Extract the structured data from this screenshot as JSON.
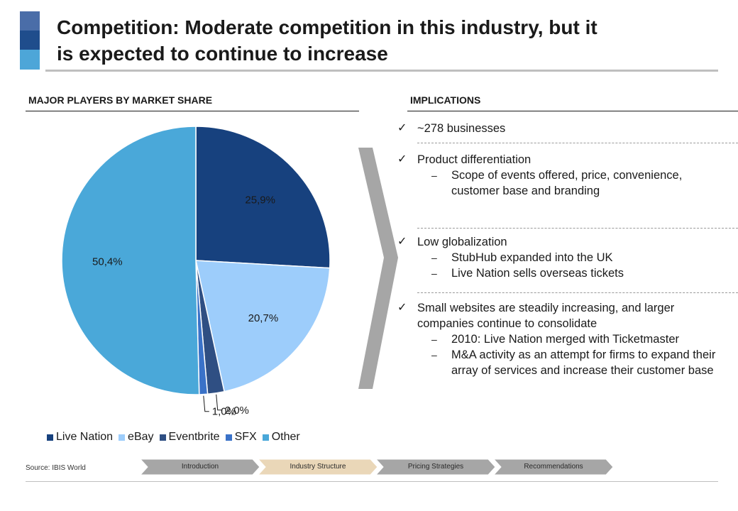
{
  "slide": {
    "title_line1": "Competition: Moderate competition in this industry, but it",
    "title_line2": "is expected to continue to increase",
    "left_heading": "MAJOR PLAYERS BY MARKET SHARE",
    "right_heading": "IMPLICATIONS",
    "source": "Source: IBIS World"
  },
  "chart_data": {
    "type": "pie",
    "title": "",
    "categories": [
      "Live Nation",
      "eBay",
      "Eventbrite",
      "SFX",
      "Other"
    ],
    "values": [
      25.9,
      20.7,
      2.0,
      1.0,
      50.4
    ],
    "labels": [
      "25,9%",
      "20,7%",
      "2,0%",
      "1,0%",
      "50,4%"
    ],
    "colors": [
      "#17417e",
      "#9dcdfb",
      "#2f4f83",
      "#3a72c8",
      "#4aa8d9"
    ],
    "legend_position": "bottom"
  },
  "implications": [
    {
      "text": "~278 businesses",
      "subs": []
    },
    {
      "text": "Product differentiation",
      "subs": [
        "Scope of events offered, price, convenience, customer base and branding"
      ]
    },
    {
      "text": "Low globalization",
      "subs": [
        "StubHub expanded into the UK",
        "Live Nation sells overseas tickets"
      ]
    },
    {
      "text": "Small websites are steadily increasing, and larger companies continue to consolidate",
      "subs": [
        "2010: Live Nation merged with Ticketmaster",
        "M&A activity as an attempt for firms to expand their array of services and increase their customer base"
      ]
    }
  ],
  "icons": {
    "bullet": "checkmark-icon",
    "sub_bullet": "dash-icon",
    "arrow": "chevron-arrow-icon"
  },
  "nav": {
    "steps": [
      "Introduction",
      "Industry Structure",
      "Pricing Strategies",
      "Recommendations"
    ],
    "active": "Industry Structure",
    "colors": {
      "default": "#a6a6a6",
      "active": "#ead7b8"
    }
  }
}
